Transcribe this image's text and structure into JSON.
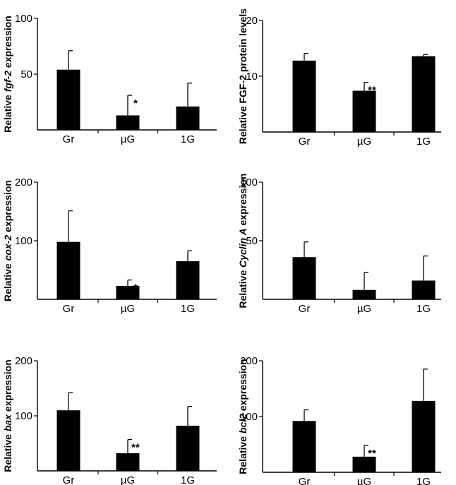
{
  "chart_data": [
    {
      "type": "bar",
      "ylabel_parts": [
        {
          "t": "Relative "
        },
        {
          "t": "fgf-2",
          "i": true
        },
        {
          "t": " expression"
        }
      ],
      "categories": [
        "Gr",
        "µG",
        "1G"
      ],
      "values": [
        54,
        13,
        21
      ],
      "errors": [
        17,
        18,
        21
      ],
      "significance": [
        "",
        "*",
        ""
      ],
      "ylim": [
        0,
        100
      ],
      "yticks": [
        50,
        100
      ]
    },
    {
      "type": "bar",
      "ylabel_parts": [
        {
          "t": "Relative FGF-2 protein levels"
        }
      ],
      "categories": [
        "Gr",
        "µG",
        "1G"
      ],
      "values": [
        12.8,
        7.4,
        13.6
      ],
      "errors": [
        1.3,
        1.5,
        0.3
      ],
      "significance": [
        "",
        "**",
        ""
      ],
      "ylim": [
        0,
        20
      ],
      "yticks": [
        10,
        20
      ]
    },
    {
      "type": "bar",
      "ylabel_parts": [
        {
          "t": "Relative "
        },
        {
          "t": "cox-2",
          "i": true
        },
        {
          "t": " expression"
        }
      ],
      "categories": [
        "Gr",
        "µG",
        "1G"
      ],
      "values": [
        98,
        23,
        65
      ],
      "errors": [
        53,
        10,
        18
      ],
      "significance": [
        "",
        "*",
        ""
      ],
      "ylim": [
        0,
        200
      ],
      "yticks": [
        100,
        200
      ]
    },
    {
      "type": "bar",
      "ylabel_parts": [
        {
          "t": "Relative "
        },
        {
          "t": "Cyclin A",
          "i": true
        },
        {
          "t": " expression"
        }
      ],
      "categories": [
        "Gr",
        "µG",
        "1G"
      ],
      "values": [
        36,
        8,
        16
      ],
      "errors": [
        13,
        15,
        21
      ],
      "significance": [
        "",
        "",
        ""
      ],
      "ylim": [
        0,
        100
      ],
      "yticks": [
        50,
        100
      ]
    },
    {
      "type": "bar",
      "ylabel_parts": [
        {
          "t": "Relative "
        },
        {
          "t": "bax",
          "i": true
        },
        {
          "t": " expression"
        }
      ],
      "categories": [
        "Gr",
        "µG",
        "1G"
      ],
      "values": [
        110,
        32,
        82
      ],
      "errors": [
        32,
        25,
        35
      ],
      "significance": [
        "",
        "**",
        ""
      ],
      "ylim": [
        0,
        200
      ],
      "yticks": [
        100,
        200
      ]
    },
    {
      "type": "bar",
      "ylabel_parts": [
        {
          "t": "Relative "
        },
        {
          "t": "bcl2",
          "i": true
        },
        {
          "t": " expression"
        }
      ],
      "categories": [
        "Gr",
        "µG",
        "1G"
      ],
      "values": [
        92,
        28,
        128
      ],
      "errors": [
        20,
        20,
        57
      ],
      "significance": [
        "",
        "**",
        ""
      ],
      "ylim": [
        0,
        200
      ],
      "yticks": [
        100,
        200
      ]
    }
  ]
}
